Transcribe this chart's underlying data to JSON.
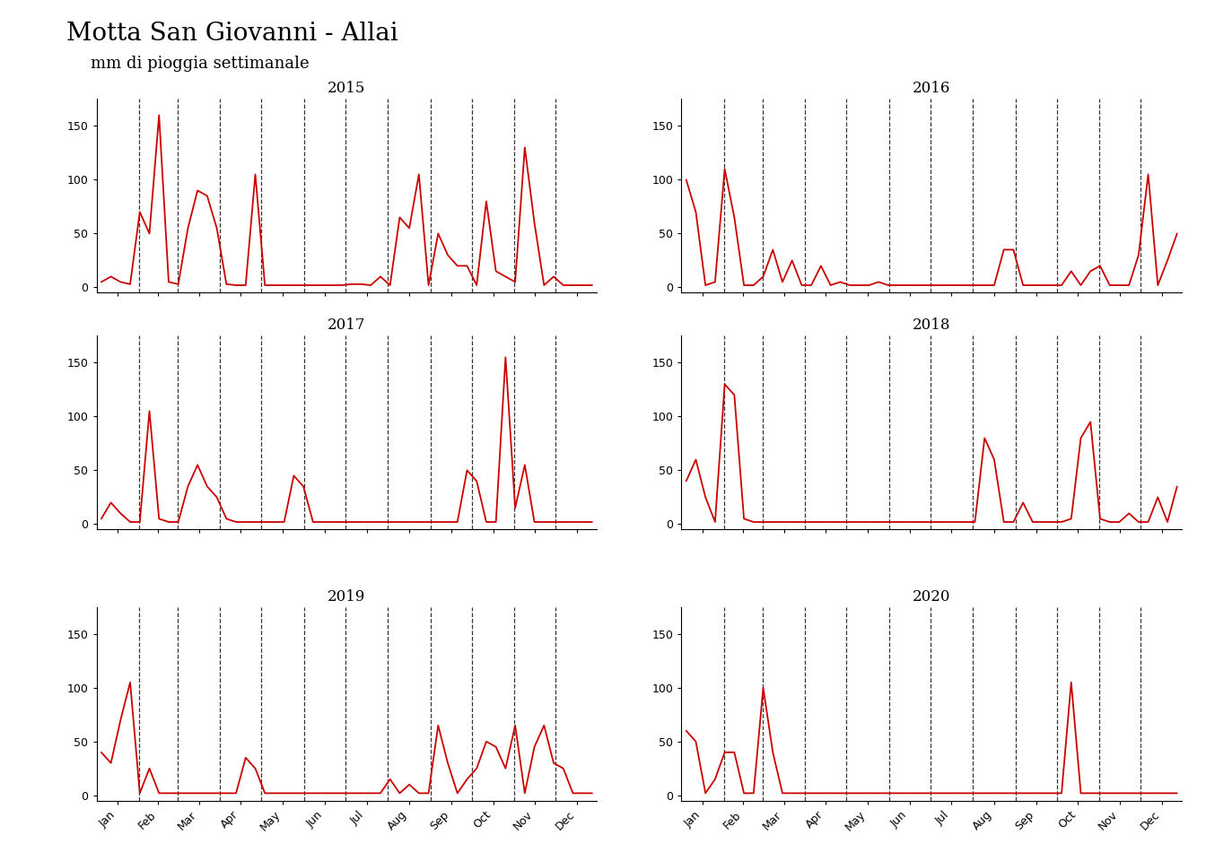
{
  "title": "Motta San Giovanni - Allai",
  "subtitle": "mm di pioggia settimanale",
  "line_color": "#cc0000",
  "background_color": "#ffffff",
  "years": [
    2015,
    2016,
    2017,
    2018,
    2019,
    2020
  ],
  "ylim": [
    -5,
    175
  ],
  "yticks": [
    0,
    50,
    100,
    150
  ],
  "data": {
    "2015": [
      5,
      10,
      5,
      3,
      70,
      50,
      160,
      5,
      3,
      55,
      90,
      85,
      55,
      3,
      2,
      2,
      105,
      2,
      2,
      2,
      2,
      2,
      2,
      2,
      2,
      2,
      3,
      3,
      2,
      10,
      2,
      65,
      55,
      105,
      2,
      50,
      30,
      20,
      20,
      2,
      80,
      15,
      10,
      5,
      130,
      60,
      2,
      10,
      2,
      2,
      2,
      2
    ],
    "2016": [
      100,
      70,
      2,
      5,
      110,
      65,
      2,
      2,
      10,
      35,
      5,
      25,
      2,
      2,
      20,
      2,
      5,
      2,
      2,
      2,
      5,
      2,
      2,
      2,
      2,
      2,
      2,
      2,
      2,
      2,
      2,
      2,
      2,
      35,
      35,
      2,
      2,
      2,
      2,
      2,
      15,
      2,
      15,
      20,
      2,
      2,
      2,
      30,
      105,
      2,
      25,
      50
    ],
    "2017": [
      5,
      20,
      10,
      2,
      2,
      105,
      5,
      2,
      2,
      35,
      55,
      35,
      25,
      5,
      2,
      2,
      2,
      2,
      2,
      2,
      45,
      35,
      2,
      2,
      2,
      2,
      2,
      2,
      2,
      2,
      2,
      2,
      2,
      2,
      2,
      2,
      2,
      2,
      50,
      40,
      2,
      2,
      155,
      15,
      55,
      2,
      2,
      2,
      2,
      2,
      2,
      2
    ],
    "2018": [
      40,
      60,
      25,
      2,
      130,
      120,
      5,
      2,
      2,
      2,
      2,
      2,
      2,
      2,
      2,
      2,
      2,
      2,
      2,
      2,
      2,
      2,
      2,
      2,
      2,
      2,
      2,
      2,
      2,
      2,
      2,
      80,
      60,
      2,
      2,
      20,
      2,
      2,
      2,
      2,
      5,
      80,
      95,
      5,
      2,
      2,
      10,
      2,
      2,
      25,
      2,
      35
    ],
    "2019": [
      40,
      30,
      70,
      105,
      2,
      25,
      2,
      2,
      2,
      2,
      2,
      2,
      2,
      2,
      2,
      35,
      25,
      2,
      2,
      2,
      2,
      2,
      2,
      2,
      2,
      2,
      2,
      2,
      2,
      2,
      15,
      2,
      10,
      2,
      2,
      65,
      30,
      2,
      15,
      25,
      50,
      45,
      25,
      65,
      2,
      45,
      65,
      30,
      25,
      2,
      2,
      2
    ],
    "2020": [
      60,
      50,
      2,
      15,
      40,
      40,
      2,
      2,
      100,
      40,
      2,
      2,
      2,
      2,
      2,
      2,
      2,
      2,
      2,
      2,
      2,
      2,
      2,
      2,
      2,
      2,
      2,
      2,
      2,
      2,
      2,
      2,
      2,
      2,
      2,
      2,
      2,
      2,
      2,
      2,
      105,
      2,
      2,
      2,
      2,
      2,
      2,
      2,
      2,
      2,
      2,
      2
    ]
  },
  "month_labels": [
    "Jan",
    "Feb",
    "Mar",
    "Apr",
    "May",
    "Jun",
    "Jul",
    "Aug",
    "Sep",
    "Oct",
    "Nov",
    "Dec"
  ],
  "days_in_month": [
    31,
    28,
    31,
    30,
    31,
    30,
    31,
    31,
    30,
    31,
    30,
    31
  ],
  "title_fontsize": 20,
  "subtitle_fontsize": 13,
  "year_fontsize": 12
}
